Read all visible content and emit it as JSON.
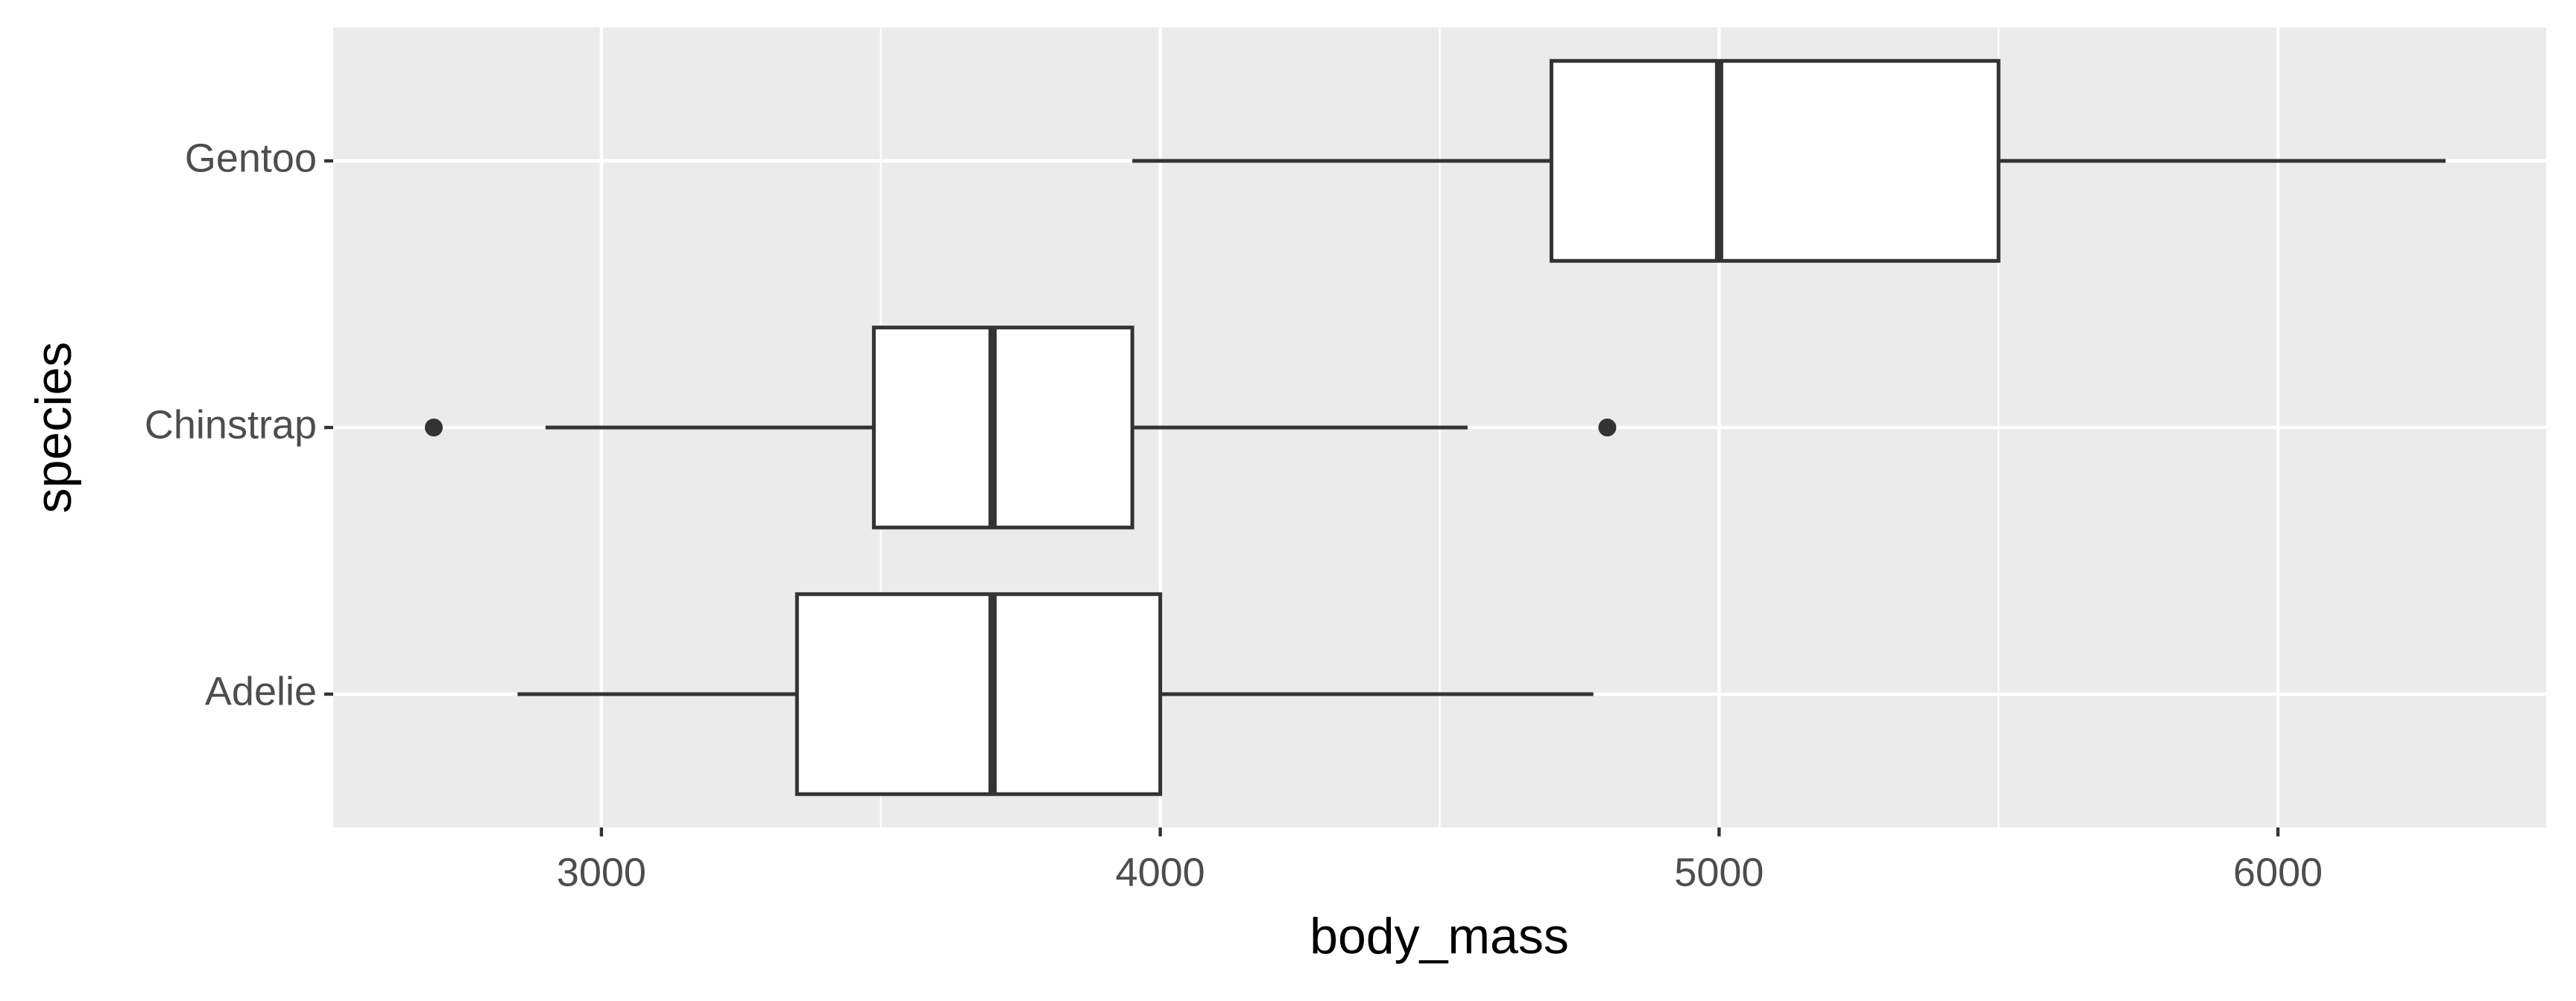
{
  "chart_data": {
    "type": "boxplot",
    "orientation": "horizontal",
    "x_label": "body_mass",
    "y_label": "species",
    "categories": [
      "Adelie",
      "Chinstrap",
      "Gentoo"
    ],
    "whisker_low": [
      2850,
      2900,
      3950
    ],
    "q1": [
      3350,
      3487.5,
      4700
    ],
    "median": [
      3700,
      3700,
      5000
    ],
    "q3": [
      4000,
      3950,
      5500
    ],
    "whisker_high": [
      4775,
      4550,
      6300
    ],
    "outliers": [
      [],
      [
        2700,
        4800
      ],
      []
    ],
    "xlim": [
      2520,
      6480
    ],
    "xticks": [
      3000,
      4000,
      5000,
      6000
    ],
    "x_minor_ticks": [
      3500,
      4500,
      5500
    ],
    "grid": true,
    "panel_color": "#ebebeb",
    "box_fill": "#ffffff",
    "line_color": "#333333"
  }
}
